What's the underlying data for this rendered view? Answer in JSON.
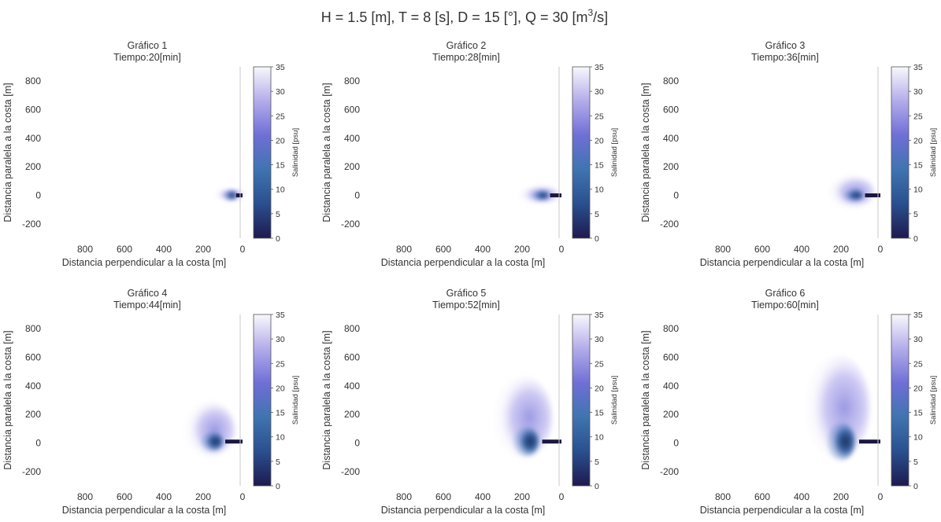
{
  "figure": {
    "suptitle_main": "H = 1.5 [m], T = 8 [s], D = 15 [°], Q = 30 [m",
    "suptitle_sup": "3",
    "suptitle_end": "/s]"
  },
  "colors": {
    "cmap_low": "#1e1a4e",
    "cmap_mid1": "#2a4f8f",
    "cmap_mid2": "#3f74b0",
    "cmap_mid3": "#6f6fd6",
    "cmap_mid4": "#b3acea",
    "cmap_high": "#f8f8fc",
    "text": "#333333",
    "divider": "#c8c8c8"
  },
  "chart_data": [
    {
      "type": "heatmap",
      "title": "Gráfico 1",
      "subtitle": "Tiempo:20[min]",
      "xlabel": "Distancia perpendicular a la costa [m]",
      "ylabel": "Distancia paralela a la costa [m]",
      "colorbar_label": "Salinidad [psu]",
      "xlim": [
        1000,
        0
      ],
      "ylim": [
        -300,
        900
      ],
      "xticks": [
        800,
        600,
        400,
        200,
        0
      ],
      "yticks": [
        800,
        600,
        400,
        200,
        0,
        -200
      ],
      "clim": [
        0,
        35
      ],
      "cticks": [
        0,
        5,
        10,
        15,
        20,
        25,
        30,
        35
      ],
      "plume": {
        "core_x": 25,
        "core_y": 0,
        "extent_x": 130,
        "extent_y_max": 50,
        "extent_y_min": -40
      }
    },
    {
      "type": "heatmap",
      "title": "Gráfico 2",
      "subtitle": "Tiempo:28[min]",
      "xlabel": "Distancia perpendicular a la costa [m]",
      "ylabel": "Distancia paralela a la costa [m]",
      "colorbar_label": "Salinidad [psu]",
      "xlim": [
        1000,
        0
      ],
      "ylim": [
        -300,
        900
      ],
      "xticks": [
        800,
        600,
        400,
        200,
        0
      ],
      "yticks": [
        800,
        600,
        400,
        200,
        0,
        -200
      ],
      "clim": [
        0,
        35
      ],
      "cticks": [
        0,
        5,
        10,
        15,
        20,
        25,
        30,
        35
      ],
      "plume": {
        "core_x": 50,
        "core_y": 0,
        "extent_x": 210,
        "extent_y_max": 70,
        "extent_y_min": -60
      }
    },
    {
      "type": "heatmap",
      "title": "Gráfico 3",
      "subtitle": "Tiempo:36[min]",
      "xlabel": "Distancia perpendicular a la costa [m]",
      "ylabel": "Distancia paralela a la costa [m]",
      "colorbar_label": "Salinidad [psu]",
      "xlim": [
        1000,
        0
      ],
      "ylim": [
        -300,
        900
      ],
      "xticks": [
        800,
        600,
        400,
        200,
        0
      ],
      "yticks": [
        800,
        600,
        400,
        200,
        0,
        -200
      ],
      "clim": [
        0,
        35
      ],
      "cticks": [
        0,
        5,
        10,
        15,
        20,
        25,
        30,
        35
      ],
      "plume": {
        "core_x": 70,
        "core_y": 0,
        "extent_x": 260,
        "extent_y_max": 140,
        "extent_y_min": -90
      }
    },
    {
      "type": "heatmap",
      "title": "Gráfico 4",
      "subtitle": "Tiempo:44[min]",
      "xlabel": "Distancia perpendicular a la costa [m]",
      "ylabel": "Distancia paralela a la costa [m]",
      "colorbar_label": "Salinidad [psu]",
      "xlim": [
        1000,
        0
      ],
      "ylim": [
        -300,
        900
      ],
      "xticks": [
        800,
        600,
        400,
        200,
        0
      ],
      "yticks": [
        800,
        600,
        400,
        200,
        0,
        -200
      ],
      "clim": [
        0,
        35
      ],
      "cticks": [
        0,
        5,
        10,
        15,
        20,
        25,
        30,
        35
      ],
      "plume": {
        "core_x": 80,
        "core_y": 10,
        "extent_x": 290,
        "extent_y_max": 290,
        "extent_y_min": -100
      }
    },
    {
      "type": "heatmap",
      "title": "Gráfico 5",
      "subtitle": "Tiempo:52[min]",
      "xlabel": "Distancia perpendicular a la costa [m]",
      "ylabel": "Distancia paralela a la costa [m]",
      "colorbar_label": "Salinidad [psu]",
      "xlim": [
        1000,
        0
      ],
      "ylim": [
        -300,
        900
      ],
      "xticks": [
        800,
        600,
        400,
        200,
        0
      ],
      "yticks": [
        800,
        600,
        400,
        200,
        0,
        -200
      ],
      "clim": [
        0,
        35
      ],
      "cticks": [
        0,
        5,
        10,
        15,
        20,
        25,
        30,
        35
      ],
      "plume": {
        "core_x": 90,
        "core_y": 10,
        "extent_x": 340,
        "extent_y_max": 470,
        "extent_y_min": -110
      }
    },
    {
      "type": "heatmap",
      "title": "Gráfico 6",
      "subtitle": "Tiempo:60[min]",
      "xlabel": "Distancia perpendicular a la costa [m]",
      "ylabel": "Distancia paralela a la costa [m]",
      "colorbar_label": "Salinidad [psu]",
      "xlim": [
        1000,
        0
      ],
      "ylim": [
        -300,
        900
      ],
      "xticks": [
        800,
        600,
        400,
        200,
        0
      ],
      "yticks": [
        800,
        600,
        400,
        200,
        0,
        -200
      ],
      "clim": [
        0,
        35
      ],
      "cticks": [
        0,
        5,
        10,
        15,
        20,
        25,
        30,
        35
      ],
      "plume": {
        "core_x": 100,
        "core_y": 10,
        "extent_x": 380,
        "extent_y_max": 620,
        "extent_y_min": -120
      }
    }
  ]
}
